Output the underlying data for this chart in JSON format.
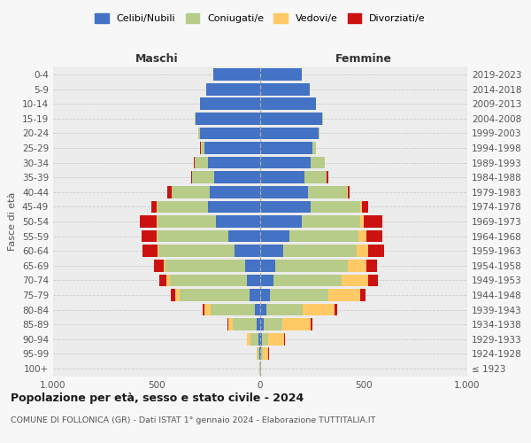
{
  "age_groups": [
    "100+",
    "95-99",
    "90-94",
    "85-89",
    "80-84",
    "75-79",
    "70-74",
    "65-69",
    "60-64",
    "55-59",
    "50-54",
    "45-49",
    "40-44",
    "35-39",
    "30-34",
    "25-29",
    "20-24",
    "15-19",
    "10-14",
    "5-9",
    "0-4"
  ],
  "birth_years": [
    "≤ 1923",
    "1924-1928",
    "1929-1933",
    "1934-1938",
    "1939-1943",
    "1944-1948",
    "1949-1953",
    "1954-1958",
    "1959-1963",
    "1964-1968",
    "1969-1973",
    "1974-1978",
    "1979-1983",
    "1984-1988",
    "1989-1993",
    "1994-1998",
    "1999-2003",
    "2004-2008",
    "2009-2013",
    "2014-2018",
    "2019-2023"
  ],
  "males": {
    "celibi": [
      2,
      4,
      8,
      15,
      25,
      52,
      62,
      72,
      122,
      152,
      212,
      252,
      242,
      222,
      252,
      270,
      290,
      312,
      290,
      260,
      228
    ],
    "coniugati": [
      2,
      8,
      38,
      118,
      215,
      338,
      375,
      385,
      368,
      345,
      285,
      245,
      185,
      105,
      65,
      18,
      8,
      4,
      1,
      0,
      0
    ],
    "vedovi": [
      1,
      5,
      18,
      22,
      28,
      22,
      18,
      8,
      6,
      4,
      2,
      1,
      1,
      0,
      0,
      0,
      0,
      0,
      0,
      0,
      0
    ],
    "divorziati": [
      0,
      1,
      2,
      5,
      10,
      20,
      32,
      48,
      72,
      72,
      82,
      26,
      20,
      8,
      4,
      1,
      0,
      0,
      0,
      0,
      0
    ]
  },
  "females": {
    "nubili": [
      2,
      5,
      10,
      18,
      28,
      48,
      62,
      72,
      112,
      142,
      202,
      242,
      232,
      212,
      242,
      252,
      280,
      300,
      270,
      240,
      200
    ],
    "coniugate": [
      1,
      6,
      28,
      88,
      175,
      282,
      332,
      352,
      352,
      332,
      282,
      242,
      185,
      108,
      68,
      18,
      8,
      4,
      1,
      0,
      0
    ],
    "vedove": [
      3,
      28,
      78,
      138,
      158,
      155,
      128,
      88,
      58,
      38,
      18,
      8,
      4,
      2,
      0,
      0,
      0,
      0,
      0,
      0,
      0
    ],
    "divorziate": [
      0,
      2,
      3,
      8,
      12,
      22,
      48,
      52,
      78,
      78,
      88,
      28,
      12,
      6,
      2,
      0,
      0,
      0,
      0,
      0,
      0
    ]
  },
  "color_celibi": "#4472c4",
  "color_coniugati": "#b8cc8a",
  "color_vedovi": "#ffc966",
  "color_divorziati": "#cc1111",
  "title": "Popolazione per età, sesso e stato civile - 2024",
  "subtitle": "COMUNE DI FOLLONICA (GR) - Dati ISTAT 1° gennaio 2024 - Elaborazione TUTTITALIA.IT",
  "label_maschi": "Maschi",
  "label_femmine": "Femmine",
  "ylabel_left": "Fasce di età",
  "xlim": 1000,
  "legend_labels": [
    "Celibi/Nubili",
    "Coniugati/e",
    "Vedovi/e",
    "Divorziati/e"
  ],
  "fig_bg": "#f7f7f7",
  "axes_bg": "#ececec"
}
